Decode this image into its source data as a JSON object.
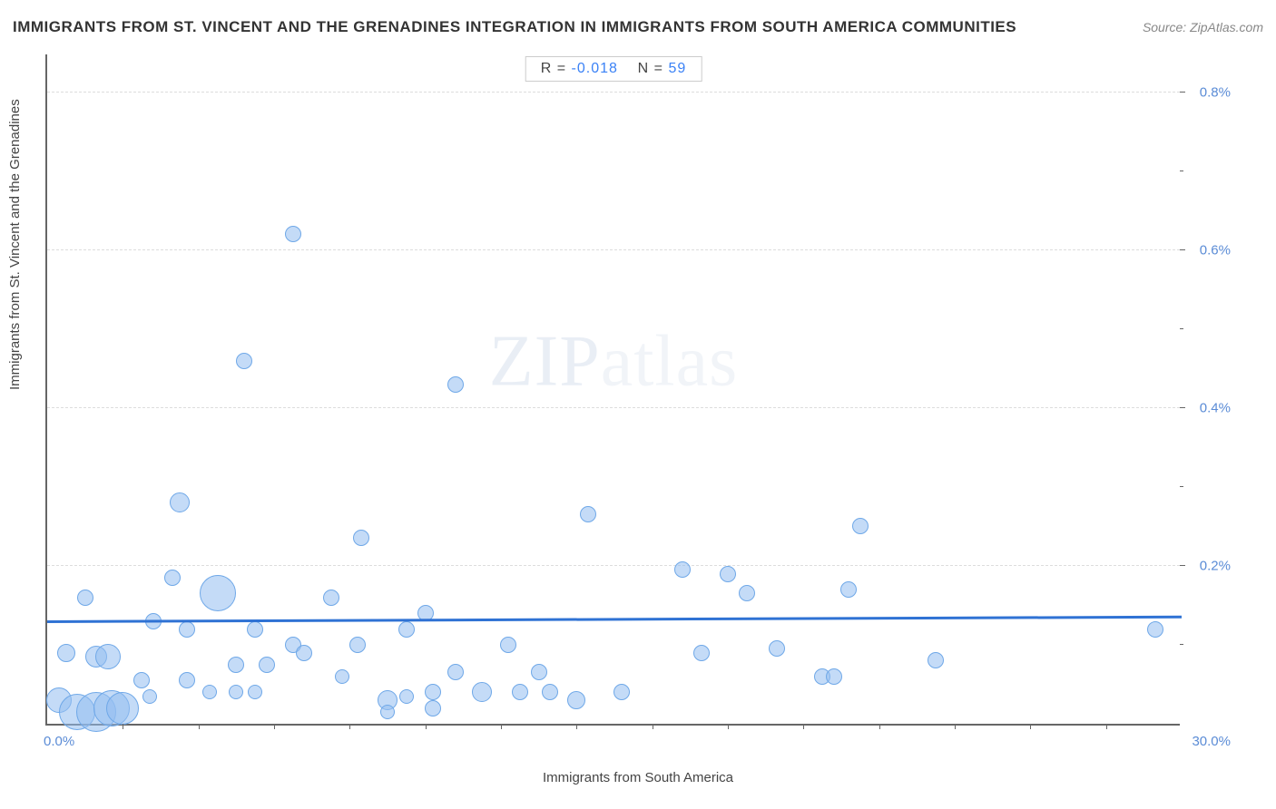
{
  "title": "IMMIGRANTS FROM ST. VINCENT AND THE GRENADINES INTEGRATION IN IMMIGRANTS FROM SOUTH AMERICA COMMUNITIES",
  "source": "Source: ZipAtlas.com",
  "watermark_bold": "ZIP",
  "watermark_light": "atlas",
  "chart": {
    "type": "scatter",
    "x_label": "Immigrants from South America",
    "y_label": "Immigrants from St. Vincent and the Grenadines",
    "xlim": [
      0,
      30
    ],
    "ylim": [
      0,
      0.85
    ],
    "x_min_label": "0.0%",
    "x_max_label": "30.0%",
    "y_ticks": [
      0.2,
      0.4,
      0.6,
      0.8
    ],
    "y_tick_labels": [
      "0.2%",
      "0.4%",
      "0.6%",
      "0.8%"
    ],
    "x_minor_ticks": [
      2,
      4,
      6,
      8,
      10,
      12,
      14,
      16,
      18,
      20,
      22,
      24,
      26,
      28
    ],
    "y_minor_ticks": [
      0.1,
      0.3,
      0.5,
      0.7
    ],
    "background_color": "#ffffff",
    "grid_color": "#dddddd",
    "axis_color": "#666666",
    "bubble_fill": "rgba(147,190,240,0.55)",
    "bubble_stroke": "#6fa8e8",
    "label_color": "#5b8cd6",
    "trend_color": "#2f72d4",
    "trend": {
      "y_at_x0": 0.128,
      "y_at_xmax": 0.122
    },
    "stats": {
      "R_label": "R =",
      "R_value": "-0.018",
      "N_label": "N =",
      "N_value": "59"
    },
    "points": [
      {
        "x": 0.3,
        "y": 0.03,
        "r": 14
      },
      {
        "x": 0.8,
        "y": 0.015,
        "r": 20
      },
      {
        "x": 1.3,
        "y": 0.015,
        "r": 22
      },
      {
        "x": 1.7,
        "y": 0.02,
        "r": 20
      },
      {
        "x": 2.0,
        "y": 0.02,
        "r": 18
      },
      {
        "x": 0.5,
        "y": 0.09,
        "r": 10
      },
      {
        "x": 1.0,
        "y": 0.16,
        "r": 9
      },
      {
        "x": 1.3,
        "y": 0.085,
        "r": 12
      },
      {
        "x": 1.6,
        "y": 0.085,
        "r": 14
      },
      {
        "x": 2.5,
        "y": 0.055,
        "r": 9
      },
      {
        "x": 2.8,
        "y": 0.13,
        "r": 9
      },
      {
        "x": 2.7,
        "y": 0.035,
        "r": 8
      },
      {
        "x": 3.3,
        "y": 0.185,
        "r": 9
      },
      {
        "x": 3.7,
        "y": 0.055,
        "r": 9
      },
      {
        "x": 3.7,
        "y": 0.12,
        "r": 9
      },
      {
        "x": 3.5,
        "y": 0.28,
        "r": 11
      },
      {
        "x": 4.3,
        "y": 0.04,
        "r": 8
      },
      {
        "x": 4.5,
        "y": 0.165,
        "r": 20
      },
      {
        "x": 5.0,
        "y": 0.04,
        "r": 8
      },
      {
        "x": 5.0,
        "y": 0.075,
        "r": 9
      },
      {
        "x": 5.5,
        "y": 0.12,
        "r": 9
      },
      {
        "x": 5.2,
        "y": 0.46,
        "r": 9
      },
      {
        "x": 5.8,
        "y": 0.075,
        "r": 9
      },
      {
        "x": 5.5,
        "y": 0.04,
        "r": 8
      },
      {
        "x": 6.5,
        "y": 0.1,
        "r": 9
      },
      {
        "x": 6.5,
        "y": 0.62,
        "r": 9
      },
      {
        "x": 6.8,
        "y": 0.09,
        "r": 9
      },
      {
        "x": 7.5,
        "y": 0.16,
        "r": 9
      },
      {
        "x": 7.8,
        "y": 0.06,
        "r": 8
      },
      {
        "x": 8.2,
        "y": 0.1,
        "r": 9
      },
      {
        "x": 8.3,
        "y": 0.235,
        "r": 9
      },
      {
        "x": 9.0,
        "y": 0.03,
        "r": 11
      },
      {
        "x": 9.0,
        "y": 0.015,
        "r": 8
      },
      {
        "x": 9.5,
        "y": 0.12,
        "r": 9
      },
      {
        "x": 9.5,
        "y": 0.035,
        "r": 8
      },
      {
        "x": 10.0,
        "y": 0.14,
        "r": 9
      },
      {
        "x": 10.2,
        "y": 0.04,
        "r": 9
      },
      {
        "x": 10.2,
        "y": 0.02,
        "r": 9
      },
      {
        "x": 10.8,
        "y": 0.065,
        "r": 9
      },
      {
        "x": 10.8,
        "y": 0.43,
        "r": 9
      },
      {
        "x": 11.5,
        "y": 0.04,
        "r": 11
      },
      {
        "x": 12.2,
        "y": 0.1,
        "r": 9
      },
      {
        "x": 12.5,
        "y": 0.04,
        "r": 9
      },
      {
        "x": 13.0,
        "y": 0.065,
        "r": 9
      },
      {
        "x": 13.3,
        "y": 0.04,
        "r": 9
      },
      {
        "x": 14.0,
        "y": 0.03,
        "r": 10
      },
      {
        "x": 14.3,
        "y": 0.265,
        "r": 9
      },
      {
        "x": 15.2,
        "y": 0.04,
        "r": 9
      },
      {
        "x": 16.8,
        "y": 0.195,
        "r": 9
      },
      {
        "x": 17.3,
        "y": 0.09,
        "r": 9
      },
      {
        "x": 18.0,
        "y": 0.19,
        "r": 9
      },
      {
        "x": 18.5,
        "y": 0.165,
        "r": 9
      },
      {
        "x": 19.3,
        "y": 0.095,
        "r": 9
      },
      {
        "x": 20.5,
        "y": 0.06,
        "r": 9
      },
      {
        "x": 20.8,
        "y": 0.06,
        "r": 9
      },
      {
        "x": 21.2,
        "y": 0.17,
        "r": 9
      },
      {
        "x": 21.5,
        "y": 0.25,
        "r": 9
      },
      {
        "x": 23.5,
        "y": 0.08,
        "r": 9
      },
      {
        "x": 29.3,
        "y": 0.12,
        "r": 9
      }
    ]
  }
}
